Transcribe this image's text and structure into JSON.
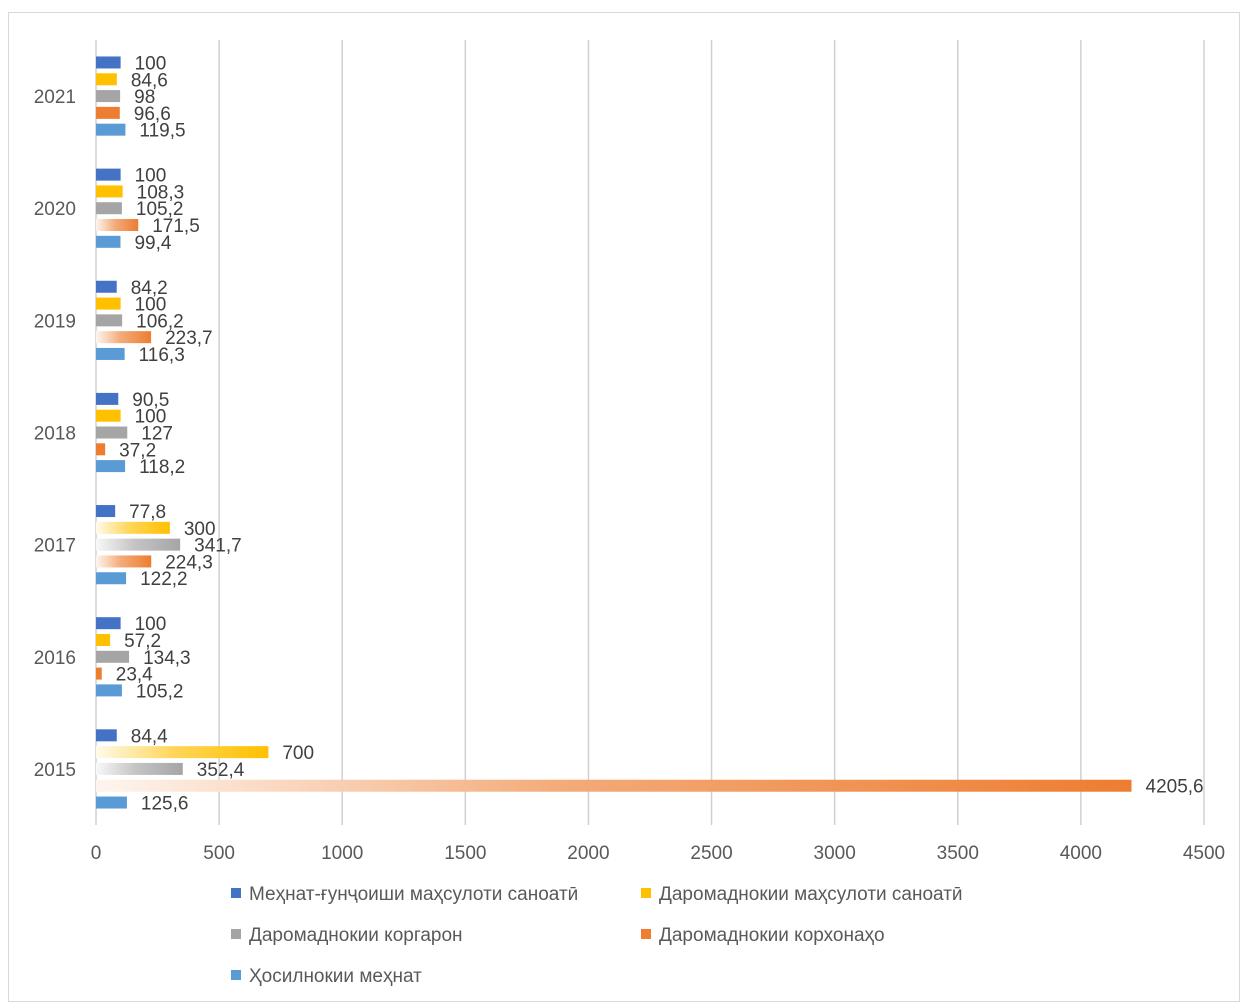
{
  "chart_data": {
    "type": "bar",
    "orientation": "horizontal",
    "categories": [
      "2015",
      "2016",
      "2017",
      "2018",
      "2019",
      "2020",
      "2021"
    ],
    "series": [
      {
        "name": "Меҳнат-ғунҷоиши маҳсулоти саноатӣ",
        "color": "#4472c4",
        "values": [
          84.4,
          100,
          77.8,
          90.5,
          84.2,
          100,
          100
        ],
        "labels": [
          "84,4",
          "100",
          "77,8",
          "90,5",
          "84,2",
          "100",
          "100"
        ]
      },
      {
        "name": "Даромаднокии маҳсулоти саноатӣ",
        "color": "#ffc000",
        "values": [
          700,
          57.2,
          300,
          100,
          100,
          108.3,
          84.6
        ],
        "labels": [
          "700",
          "57,2",
          "300",
          "100",
          "100",
          "108,3",
          "84,6"
        ]
      },
      {
        "name": "Даромаднокии коргарон",
        "color": "#a5a5a5",
        "values": [
          352.4,
          134.3,
          341.7,
          127,
          106.2,
          105.2,
          98
        ],
        "labels": [
          "352,4",
          "134,3",
          "341,7",
          "127",
          "106,2",
          "105,2",
          "98"
        ]
      },
      {
        "name": "Даромаднокии корхонаҳо",
        "color": "#ed7d31",
        "values": [
          4205.6,
          23.4,
          224.3,
          37.2,
          223.7,
          171.5,
          96.6
        ],
        "labels": [
          "4205,6",
          "23,4",
          "224,3",
          "37,2",
          "223,7",
          "171,5",
          "96,6"
        ]
      },
      {
        "name": "Ҳосилнокии меҳнат",
        "color": "#5b9bd5",
        "values": [
          125.6,
          105.2,
          122.2,
          118.2,
          116.3,
          99.4,
          119.5
        ],
        "labels": [
          "125,6",
          "105,2",
          "122,2",
          "118,2",
          "116,3",
          "99,4",
          "119,5"
        ]
      }
    ],
    "xlim": [
      0,
      4500
    ],
    "x_ticks": [
      "0",
      "500",
      "1000",
      "1500",
      "2000",
      "2500",
      "3000",
      "3500",
      "4000",
      "4500"
    ],
    "grid": true,
    "legend_position": "bottom",
    "title": "",
    "xlabel": "",
    "ylabel": ""
  }
}
